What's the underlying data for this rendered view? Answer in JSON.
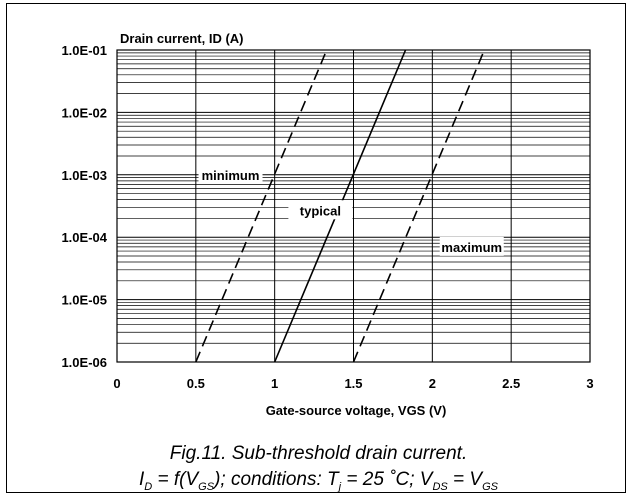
{
  "chart_data": {
    "type": "line",
    "title": "Drain current, ID (A)",
    "xlabel": "Gate-source voltage, VGS (V)",
    "ylabel": "Drain current, ID (A)",
    "xlim": [
      0,
      3
    ],
    "ylim": [
      1e-06,
      0.1
    ],
    "yscale": "log",
    "x_ticks": [
      "0",
      "0.5",
      "1",
      "1.5",
      "2",
      "2.5",
      "3"
    ],
    "y_ticks": [
      "1.0E-06",
      "1.0E-05",
      "1.0E-04",
      "1.0E-03",
      "1.0E-02",
      "1.0E-01"
    ],
    "grid": true,
    "series": [
      {
        "name": "minimum",
        "style": "dashed",
        "x": [
          0.5,
          1.33
        ],
        "y": [
          1e-06,
          0.1
        ]
      },
      {
        "name": "typical",
        "style": "solid",
        "x": [
          1.0,
          1.83
        ],
        "y": [
          1e-06,
          0.1
        ]
      },
      {
        "name": "maximum",
        "style": "dashed",
        "x": [
          1.5,
          2.33
        ],
        "y": [
          1e-06,
          0.1
        ]
      }
    ]
  },
  "caption": {
    "line1": "Fig.11.   Sub-threshold drain current.",
    "line2_parts": {
      "i": "I",
      "d_sub": "D",
      "eq_f": " = f(V",
      "gs_sub1": "GS",
      "cond": "); conditions: T",
      "j_sub": "j",
      "temp": " = 25 ˚C; V",
      "ds_sub": "DS",
      "eq_v": " = V",
      "gs_sub2": "GS"
    }
  },
  "colors": {
    "line": "#000000",
    "grid": "#000000",
    "background": "#ffffff"
  }
}
